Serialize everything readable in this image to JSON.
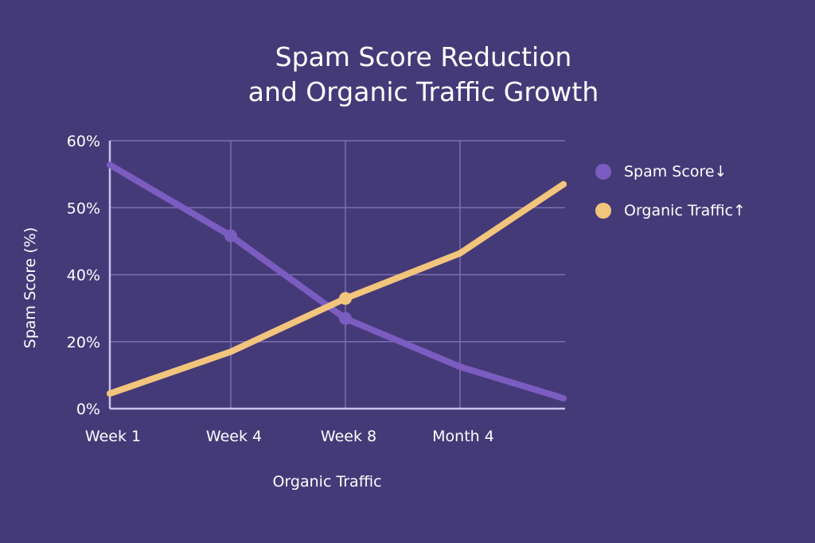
{
  "chart_data": {
    "type": "line",
    "title": "Spam Score Reduction and Organic Traffic Growth",
    "title_lines": [
      "Spam Score Reduction",
      "and Organic Traffic Growth"
    ],
    "xlabel": "Organic Traffic",
    "ylabel": "Spam Score (%)",
    "x_tick_labels": [
      "Week 1",
      "Week 4",
      "Week 8",
      "Month 4"
    ],
    "x_points": [
      "Week 1",
      "Week 4",
      "Week 8",
      "Month 4",
      ""
    ],
    "y_tick_labels": [
      "0%",
      "20%",
      "40%",
      "50%",
      "60%"
    ],
    "y_tick_values": [
      0,
      20,
      40,
      50,
      60
    ],
    "ylim": [
      0,
      60
    ],
    "grid": true,
    "legend_position": "right",
    "series": [
      {
        "name": "Spam Score↓",
        "color": "#7b5cc0",
        "values": [
          56.4,
          45.8,
          26.9,
          12.5,
          3.1
        ],
        "markers_at": [
          1,
          2
        ]
      },
      {
        "name": "Organic Traffic↑",
        "color": "#f2c57c",
        "values": [
          4.5,
          17.0,
          32.9,
          43.2,
          53.5
        ],
        "markers_at": [
          2
        ]
      }
    ]
  },
  "colors": {
    "background": "#453a78",
    "grid": "#7a6fb0",
    "axis": "#c9c2ec",
    "text": "#ffffff"
  }
}
